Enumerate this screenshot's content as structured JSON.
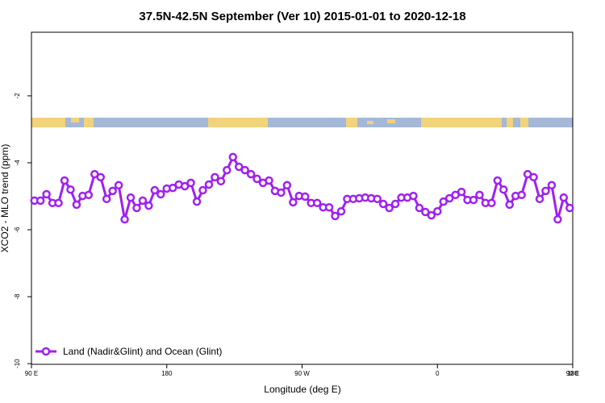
{
  "chart_data": {
    "type": "line",
    "title": "37.5N-42.5N September (Ver 10)   2015-01-01 to 2020-12-18",
    "x_label": "Longitude (deg E)",
    "y_label": "XCO2 - MLO trend (ppm)",
    "xlim": [
      90,
      450
    ],
    "ylim": [
      -10.02,
      -0.1
    ],
    "xticks": [
      {
        "value": 90,
        "label": "90 E"
      },
      {
        "value": 180,
        "label": "180"
      },
      {
        "value": 270,
        "label": "90 W"
      },
      {
        "value": 360,
        "label": "0"
      },
      {
        "value": 450,
        "label": "90 E"
      },
      {
        "value": 540,
        "label": "180"
      }
    ],
    "yticks": [
      -2,
      -4,
      -6,
      -8,
      -10
    ],
    "legend": "bottom left",
    "x": [
      92,
      96,
      100,
      104,
      108,
      112,
      116,
      120,
      124,
      128,
      132,
      136,
      140,
      144,
      148,
      152,
      156,
      160,
      164,
      168,
      172,
      176,
      180,
      184,
      188,
      192,
      196,
      200,
      204,
      208,
      212,
      216,
      220,
      224,
      228,
      232,
      236,
      240,
      244,
      248,
      252,
      256,
      260,
      264,
      268,
      272,
      276,
      280,
      284,
      288,
      292,
      296,
      300,
      304,
      308,
      312,
      316,
      320,
      324,
      328,
      332,
      336,
      340,
      344,
      348,
      352,
      356,
      360,
      364,
      368,
      372,
      376,
      380,
      384,
      388,
      392,
      396,
      400,
      404,
      408,
      412,
      416,
      420,
      424,
      428,
      432,
      436,
      440,
      444,
      448
    ],
    "series": [
      {
        "name": "Land (Nadir&Glint) and Ocean (Glint)",
        "color": "#a020f0",
        "values": [
          -5.13,
          -5.13,
          -4.94,
          -5.2,
          -5.2,
          -4.53,
          -4.8,
          -5.25,
          -4.99,
          -4.96,
          -4.34,
          -4.43,
          -5.08,
          -4.84,
          -4.67,
          -5.69,
          -5.04,
          -5.35,
          -5.13,
          -5.28,
          -4.82,
          -4.94,
          -4.77,
          -4.75,
          -4.65,
          -4.7,
          -4.6,
          -5.16,
          -4.82,
          -4.65,
          -4.43,
          -4.55,
          -4.22,
          -3.83,
          -4.12,
          -4.22,
          -4.34,
          -4.48,
          -4.6,
          -4.53,
          -4.84,
          -4.89,
          -4.67,
          -5.18,
          -4.99,
          -5.01,
          -5.2,
          -5.2,
          -5.33,
          -5.33,
          -5.59,
          -5.45,
          -5.08,
          -5.08,
          -5.06,
          -5.04,
          -5.06,
          -5.08,
          -5.23,
          -5.35,
          -5.23,
          -5.04,
          -5.04,
          -4.99,
          -5.35,
          -5.47,
          -5.57,
          -5.45,
          -5.16,
          -5.06,
          -4.96,
          -4.87,
          -5.11,
          -5.11,
          -4.96,
          -5.2,
          -5.2,
          -4.53,
          -4.8,
          -5.25,
          -4.99,
          -4.96,
          -4.34,
          -4.43,
          -5.08,
          -4.84,
          -4.67,
          -5.69,
          -5.04,
          -5.35
        ]
      }
    ]
  }
}
